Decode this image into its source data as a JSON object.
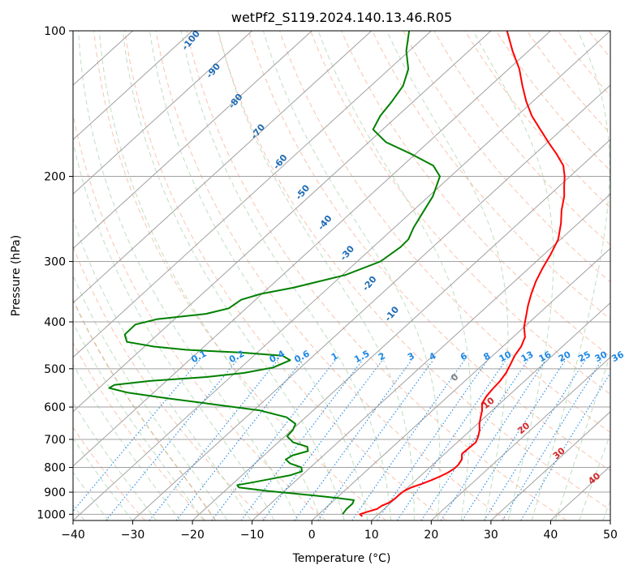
{
  "chart_data": {
    "type": "line",
    "chart_kind": "skew-T log-P diagram",
    "title": "wetPf2_S119.2024.140.13.46.R05",
    "xlabel": "Temperature (°C)",
    "ylabel": "Pressure (hPa)",
    "xlim": [
      -40,
      50
    ],
    "ylim": [
      1030,
      100
    ],
    "y_scale": "log",
    "grid": true,
    "x_ticks": [
      -40,
      -30,
      -20,
      -10,
      0,
      10,
      20,
      30,
      40,
      50
    ],
    "x_tick_labels": [
      "−40",
      "−30",
      "−20",
      "−10",
      "0",
      "10",
      "20",
      "30",
      "40",
      "50"
    ],
    "y_ticks": [
      100,
      200,
      300,
      400,
      500,
      600,
      700,
      800,
      900,
      1000
    ],
    "y_tick_labels": [
      "100",
      "200",
      "300",
      "400",
      "500",
      "600",
      "700",
      "800",
      "900",
      "1000"
    ],
    "colors": {
      "temperature": "#ff0000",
      "dewpoint": "#008000",
      "isotherm": "#a0a0a0",
      "dry_adiabat": "#f4a582",
      "moist_adiabat": "#9ccc9c",
      "mixing_ratio": "#1e88e5",
      "wet_bulb_potential": "#1f6bb3",
      "theta_e_label": "#d62728",
      "zero_label": "#808080",
      "thetaw_curve": "#d2b48c"
    },
    "series": [
      {
        "key": "temperature",
        "color": "#ff0000",
        "points": [
          [
            1010,
            7.7
          ],
          [
            1000,
            6.9
          ],
          [
            990,
            7.6
          ],
          [
            975,
            8.8
          ],
          [
            960,
            9.0
          ],
          [
            945,
            9.7
          ],
          [
            925,
            9.9
          ],
          [
            910,
            9.9
          ],
          [
            895,
            10.0
          ],
          [
            880,
            10.6
          ],
          [
            865,
            11.7
          ],
          [
            850,
            12.6
          ],
          [
            835,
            13.4
          ],
          [
            820,
            14.0
          ],
          [
            805,
            14.3
          ],
          [
            790,
            14.3
          ],
          [
            770,
            13.9
          ],
          [
            750,
            12.9
          ],
          [
            730,
            13.0
          ],
          [
            710,
            13.1
          ],
          [
            690,
            12.4
          ],
          [
            670,
            11.5
          ],
          [
            650,
            10.3
          ],
          [
            630,
            9.3
          ],
          [
            610,
            8.3
          ],
          [
            590,
            7.0
          ],
          [
            570,
            6.4
          ],
          [
            550,
            6.1
          ],
          [
            530,
            5.9
          ],
          [
            510,
            5.4
          ],
          [
            490,
            4.6
          ],
          [
            470,
            3.7
          ],
          [
            450,
            3.1
          ],
          [
            430,
            2.0
          ],
          [
            410,
            0.0
          ],
          [
            390,
            -1.6
          ],
          [
            370,
            -3.3
          ],
          [
            350,
            -4.9
          ],
          [
            330,
            -6.4
          ],
          [
            310,
            -7.7
          ],
          [
            290,
            -8.9
          ],
          [
            270,
            -10.4
          ],
          [
            250,
            -12.9
          ],
          [
            235,
            -15.2
          ],
          [
            220,
            -17.3
          ],
          [
            210,
            -19.1
          ],
          [
            200,
            -20.9
          ],
          [
            190,
            -23.1
          ],
          [
            180,
            -26.3
          ],
          [
            170,
            -29.9
          ],
          [
            160,
            -33.6
          ],
          [
            150,
            -37.5
          ],
          [
            140,
            -41.1
          ],
          [
            130,
            -44.6
          ],
          [
            120,
            -48.2
          ],
          [
            110,
            -52.7
          ],
          [
            100,
            -57.3
          ]
        ]
      },
      {
        "key": "dewpoint",
        "color": "#008000",
        "points": [
          [
            1000,
            4.0
          ],
          [
            975,
            3.7
          ],
          [
            950,
            3.7
          ],
          [
            935,
            3.3
          ],
          [
            925,
            0.1
          ],
          [
            915,
            -4.1
          ],
          [
            905,
            -8.3
          ],
          [
            895,
            -12.8
          ],
          [
            880,
            -18.3
          ],
          [
            870,
            -19.0
          ],
          [
            860,
            -17.1
          ],
          [
            845,
            -14.5
          ],
          [
            830,
            -11.9
          ],
          [
            815,
            -10.7
          ],
          [
            800,
            -11.5
          ],
          [
            785,
            -14.1
          ],
          [
            770,
            -15.6
          ],
          [
            755,
            -15.2
          ],
          [
            740,
            -13.4
          ],
          [
            725,
            -14.3
          ],
          [
            710,
            -17.5
          ],
          [
            690,
            -19.6
          ],
          [
            670,
            -19.8
          ],
          [
            650,
            -20.5
          ],
          [
            630,
            -23.2
          ],
          [
            610,
            -28.9
          ],
          [
            590,
            -39.0
          ],
          [
            575,
            -47.0
          ],
          [
            560,
            -54.4
          ],
          [
            548,
            -58.3
          ],
          [
            540,
            -58.0
          ],
          [
            530,
            -52.8
          ],
          [
            520,
            -44.0
          ],
          [
            510,
            -38.5
          ],
          [
            497,
            -34.6
          ],
          [
            480,
            -33.1
          ],
          [
            470,
            -35.2
          ],
          [
            463,
            -42.6
          ],
          [
            457,
            -52.3
          ],
          [
            450,
            -58.4
          ],
          [
            440,
            -63.8
          ],
          [
            425,
            -65.5
          ],
          [
            405,
            -65.6
          ],
          [
            395,
            -63.0
          ],
          [
            385,
            -55.7
          ],
          [
            375,
            -52.9
          ],
          [
            360,
            -52.4
          ],
          [
            350,
            -50.2
          ],
          [
            340,
            -45.9
          ],
          [
            320,
            -39.5
          ],
          [
            300,
            -36.1
          ],
          [
            280,
            -35.4
          ],
          [
            270,
            -35.5
          ],
          [
            255,
            -36.8
          ],
          [
            235,
            -38.2
          ],
          [
            220,
            -39.3
          ],
          [
            200,
            -41.8
          ],
          [
            190,
            -44.9
          ],
          [
            180,
            -50.6
          ],
          [
            170,
            -57.1
          ],
          [
            160,
            -61.6
          ],
          [
            150,
            -62.9
          ],
          [
            140,
            -63.6
          ],
          [
            130,
            -64.6
          ],
          [
            120,
            -66.8
          ],
          [
            110,
            -70.5
          ],
          [
            100,
            -73.7
          ]
        ]
      }
    ],
    "mixing_ratio_labels": [
      "0.1",
      "0.2",
      "0.4",
      "0.6",
      "1",
      "1.5",
      "2",
      "3",
      "4",
      "6",
      "8",
      "10",
      "13",
      "16",
      "20",
      "25",
      "30",
      "36"
    ],
    "wet_bulb_labels": [
      "-100",
      "-90",
      "-80",
      "-70",
      "-60",
      "-50",
      "-40",
      "-30",
      "-20",
      "-10"
    ],
    "theta_e_labels": [
      "10",
      "20",
      "30",
      "40"
    ],
    "zero_label": "0"
  }
}
